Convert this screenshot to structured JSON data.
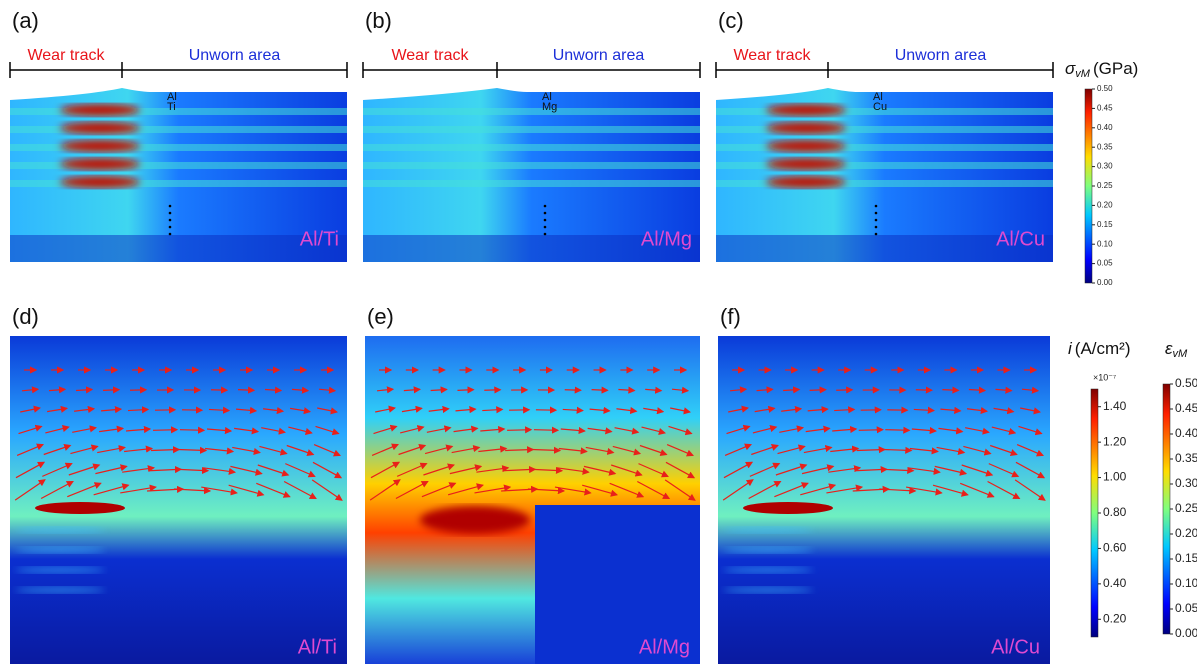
{
  "annotations": {
    "wear_track": "Wear track",
    "unworn_area": "Unworn area"
  },
  "top_panels": [
    {
      "label": "(a)",
      "material": "Al/Ti",
      "layer_top": "Al",
      "layer_bottom": "Ti"
    },
    {
      "label": "(b)",
      "material": "Al/Mg",
      "layer_top": "Al",
      "layer_bottom": "Mg"
    },
    {
      "label": "(c)",
      "material": "Al/Cu",
      "layer_top": "Al",
      "layer_bottom": "Cu"
    }
  ],
  "bottom_panels": [
    {
      "label": "(d)",
      "material": "Al/Ti"
    },
    {
      "label": "(e)",
      "material": "Al/Mg"
    },
    {
      "label": "(f)",
      "material": "Al/Cu"
    }
  ],
  "colorbars": {
    "stress": {
      "symbol": "σ",
      "subscript": "vM",
      "unit": "(GPa)",
      "range": [
        0,
        0.5
      ],
      "ticks": [
        {
          "value": 0,
          "label": "0.00"
        },
        {
          "value": 0.05,
          "label": "0.05"
        },
        {
          "value": 0.1,
          "label": "0.10"
        },
        {
          "value": 0.15,
          "label": "0.15"
        },
        {
          "value": 0.2,
          "label": "0.20"
        },
        {
          "value": 0.25,
          "label": "0.25"
        },
        {
          "value": 0.3,
          "label": "0.30"
        },
        {
          "value": 0.35,
          "label": "0.35"
        },
        {
          "value": 0.4,
          "label": "0.40"
        },
        {
          "value": 0.45,
          "label": "0.45"
        },
        {
          "value": 0.5,
          "label": "0.50"
        }
      ]
    },
    "current": {
      "symbol": "i",
      "unit": "(A/cm²)",
      "multiplier": "×10⁻⁷",
      "range": [
        0.1,
        1.5
      ],
      "ticks": [
        {
          "value": 0.2,
          "label": "0.20"
        },
        {
          "value": 0.4,
          "label": "0.40"
        },
        {
          "value": 0.6,
          "label": "0.60"
        },
        {
          "value": 0.8,
          "label": "0.80"
        },
        {
          "value": 1,
          "label": "1.00"
        },
        {
          "value": 1.2,
          "label": "1.20"
        },
        {
          "value": 1.4,
          "label": "1.40"
        }
      ]
    },
    "strain": {
      "symbol": "ε",
      "subscript": "vM",
      "range": [
        0,
        0.5
      ],
      "ticks": [
        {
          "value": 0,
          "label": "0.00"
        },
        {
          "value": 0.05,
          "label": "0.05"
        },
        {
          "value": 0.1,
          "label": "0.10"
        },
        {
          "value": 0.15,
          "label": "0.15"
        },
        {
          "value": 0.2,
          "label": "0.20"
        },
        {
          "value": 0.25,
          "label": "0.25"
        },
        {
          "value": 0.3,
          "label": "0.30"
        },
        {
          "value": 0.35,
          "label": "0.35"
        },
        {
          "value": 0.4,
          "label": "0.40"
        },
        {
          "value": 0.45,
          "label": "0.45"
        },
        {
          "value": 0.5,
          "label": "0.50"
        }
      ]
    }
  }
}
